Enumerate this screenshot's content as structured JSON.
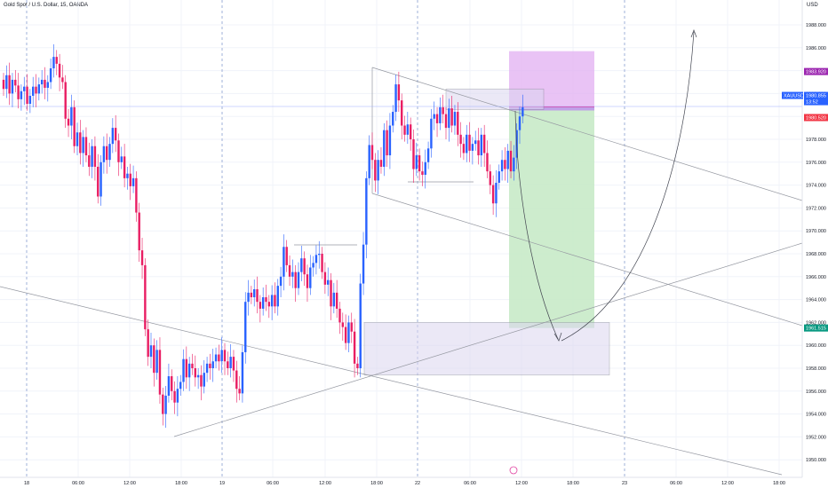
{
  "header": {
    "symbol_line": "Gold Spot / U.S. Dollar, 15, OANDA",
    "currency": "USD"
  },
  "colors": {
    "up": "#2962ff",
    "down": "#e91e63",
    "grid": "#f0f3fa",
    "line": "#787b86",
    "profit": "#c8eac8",
    "loss": "#e3b4f3",
    "box": "#dcd6f0"
  },
  "price_tags": {
    "symbol_tag": "XAUUSD",
    "current": "1980.855",
    "countdown": "13:52",
    "stop": "1983.920",
    "entry": "1980.520",
    "target": "1961.515"
  },
  "chart_data": {
    "type": "candlestick",
    "title": "Gold Spot / U.S. Dollar, 15, OANDA",
    "ylabel": "USD",
    "ylim": [
      1949,
      1990
    ],
    "y_ticks": [
      "1988.000",
      "1986.000",
      "1984.000",
      "1982.000",
      "1980.000",
      "1978.000",
      "1976.000",
      "1974.000",
      "1972.000",
      "1970.000",
      "1968.000",
      "1966.000",
      "1964.000",
      "1962.000",
      "1960.000",
      "1958.000",
      "1956.000",
      "1954.000",
      "1952.000",
      "1950.000"
    ],
    "x_ticks": [
      "18",
      "06:00",
      "12:00",
      "18:00",
      "19",
      "06:00",
      "12:00",
      "18:00",
      "22",
      "06:00",
      "12:00",
      "18:00",
      "23",
      "06:00",
      "12:00",
      "18:00"
    ],
    "series": [
      {
        "close": [
          1982.4,
          1983.6,
          1982.0,
          1983.2,
          1982.7,
          1981.5,
          1982.2,
          1982.6,
          1981.1,
          1981.8,
          1982.6,
          1982.0,
          1982.8,
          1983.2,
          1982.5,
          1983.0,
          1984.2,
          1985.2,
          1984.6,
          1983.4,
          1983.0,
          1979.8,
          1979.2,
          1980.8,
          1977.4,
          1978.6,
          1976.8,
          1978.2,
          1976.6,
          1975.6,
          1977.4,
          1975.6,
          1973.0,
          1976.0,
          1977.4,
          1976.2,
          1977.6,
          1979.0,
          1977.9,
          1976.0,
          1976.5,
          1974.6,
          1975.0,
          1973.9,
          1974.6,
          1971.6,
          1968.3,
          1967.0,
          1961.4,
          1959.0,
          1960.0,
          1957.6,
          1959.6,
          1955.7,
          1954.0,
          1955.6,
          1957.3,
          1956.0,
          1955.0,
          1956.2,
          1956.8,
          1958.8,
          1957.2,
          1958.4,
          1958.0,
          1957.2,
          1957.4,
          1956.4,
          1957.6,
          1958.4,
          1958.0,
          1958.6,
          1959.2,
          1958.6,
          1959.6,
          1958.6,
          1958.0,
          1959.0,
          1957.8,
          1956.2,
          1955.8,
          1959.4,
          1963.8,
          1964.6,
          1964.2,
          1964.9,
          1963.8,
          1963.2,
          1964.2,
          1963.8,
          1963.4,
          1964.4,
          1963.4,
          1965.2,
          1966.0,
          1968.6,
          1967.0,
          1966.0,
          1966.4,
          1965.0,
          1966.4,
          1967.6,
          1966.2,
          1965.0,
          1966.8,
          1967.2,
          1967.9,
          1968.0,
          1966.4,
          1965.3,
          1965.7,
          1963.4,
          1964.6,
          1963.2,
          1962.0,
          1961.6,
          1960.2,
          1962.0,
          1961.2,
          1958.4,
          1958.0,
          1965.4,
          1968.8,
          1974.6,
          1977.5,
          1976.2,
          1974.4,
          1976.2,
          1975.6,
          1978.8,
          1976.6,
          1979.2,
          1980.4,
          1982.8,
          1981.4,
          1979.2,
          1978.4,
          1979.3,
          1978.0,
          1975.4,
          1976.6,
          1975.2,
          1974.9,
          1976.0,
          1977.2,
          1979.8,
          1980.2,
          1979.4,
          1980.8,
          1980.2,
          1979.0,
          1980.7,
          1979.2,
          1980.4,
          1978.4,
          1977.6,
          1976.8,
          1978.4,
          1977.0,
          1977.6,
          1977.9,
          1976.6,
          1978.4,
          1976.8,
          1975.2,
          1974.0,
          1972.4,
          1974.2,
          1975.2,
          1976.2,
          1975.4,
          1977.0,
          1975.2,
          1976.4,
          1978.8,
          1980.0,
          1980.8
        ]
      }
    ],
    "open_first": 1983.2,
    "drawings": {
      "resistance_level_1": 1969.0,
      "support_level_1": 1974.4,
      "demand_zone": [
        1957.4,
        1962.0
      ],
      "supply_zone": [
        1980.6,
        1982.4
      ],
      "position": {
        "stop": 1983.92,
        "entry": 1980.52,
        "target": 1961.515
      }
    }
  }
}
